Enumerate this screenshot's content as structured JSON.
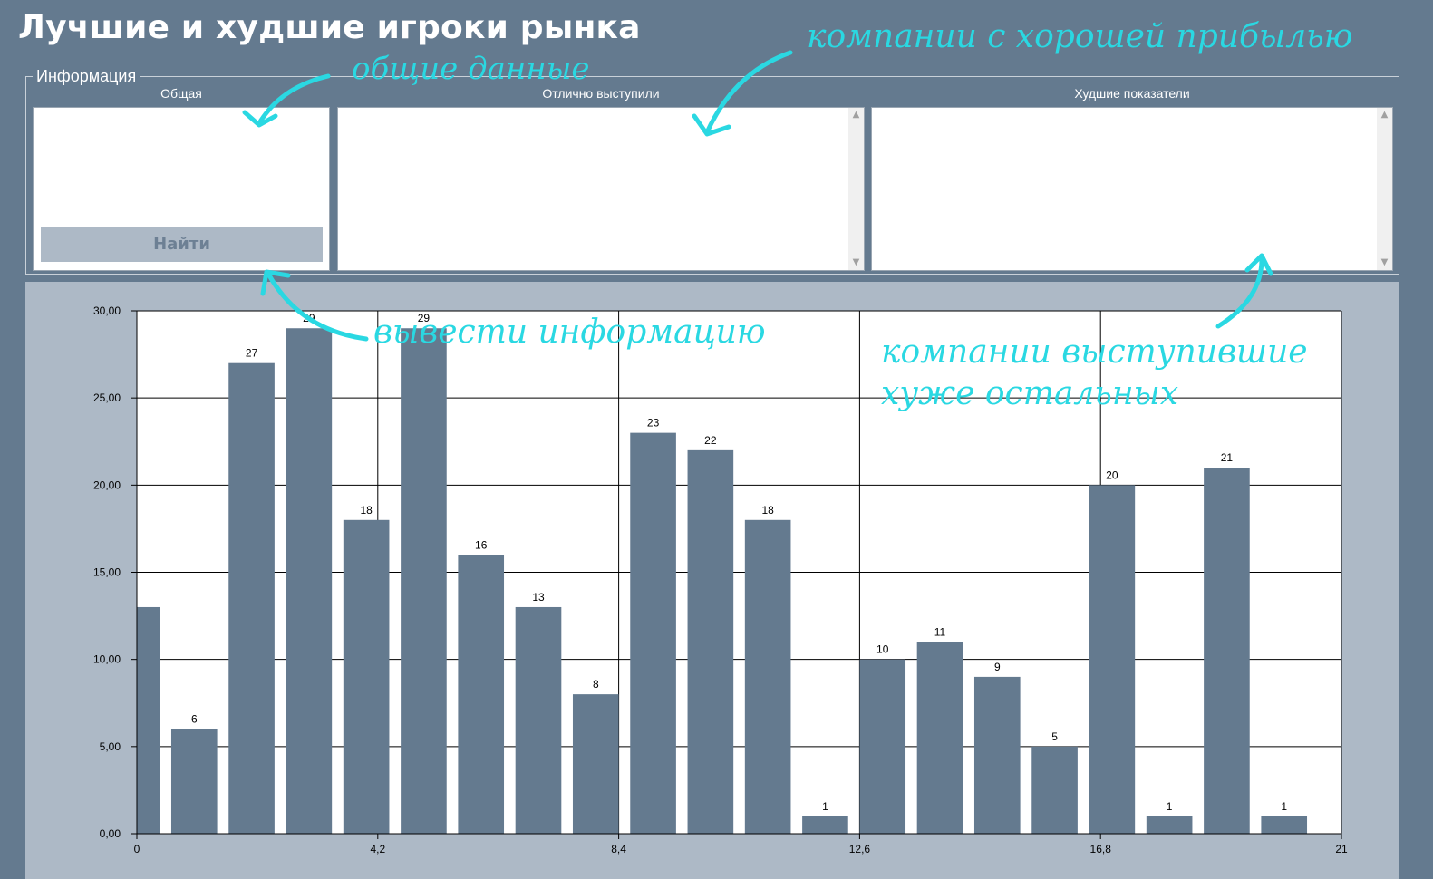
{
  "window": {
    "title": "Лучшие и худшие игроки рынка"
  },
  "info_group": {
    "legend": "Информация",
    "columns": {
      "general": "Общая",
      "best": "Отлично выступили",
      "worst": "Худшие показатели"
    },
    "find_button_label": "Найти"
  },
  "annotations": {
    "general_data": "общие данные",
    "good_profit": "компании с хорошей прибылью",
    "show_info": "вывести информацию",
    "worst_line1": "компании выступившие",
    "worst_line2": "хуже остальных"
  },
  "colors": {
    "background": "#647a8f",
    "chart_panel": "#adb9c6",
    "bar": "#647a8f",
    "annotation": "#2ad8e2"
  },
  "chart_data": {
    "type": "bar",
    "title": "",
    "xlabel": "",
    "ylabel": "",
    "x": [
      0,
      1,
      2,
      3,
      4,
      5,
      6,
      7,
      8,
      9,
      10,
      11,
      12,
      13,
      14,
      15,
      16,
      17,
      18,
      19,
      20
    ],
    "values": [
      13,
      6,
      27,
      29,
      18,
      29,
      16,
      13,
      8,
      23,
      22,
      18,
      1,
      10,
      11,
      9,
      5,
      20,
      1,
      21,
      1
    ],
    "data_labels": [
      "",
      "6",
      "27",
      "29",
      "18",
      "29",
      "16",
      "13",
      "8",
      "23",
      "22",
      "18",
      "1",
      "10",
      "11",
      "9",
      "5",
      "20",
      "1",
      "21",
      "1"
    ],
    "ylim": [
      0,
      30
    ],
    "xlim": [
      0,
      21
    ],
    "yticks": [
      "0,00",
      "5,00",
      "10,00",
      "15,00",
      "20,00",
      "25,00",
      "30,00"
    ],
    "xticks": [
      "0",
      "4,2",
      "8,4",
      "12,6",
      "16,8",
      "21"
    ],
    "ytick_values": [
      0,
      5,
      10,
      15,
      20,
      25,
      30
    ],
    "xtick_values": [
      0,
      4.2,
      8.4,
      12.6,
      16.8,
      21
    ],
    "grid": true
  }
}
